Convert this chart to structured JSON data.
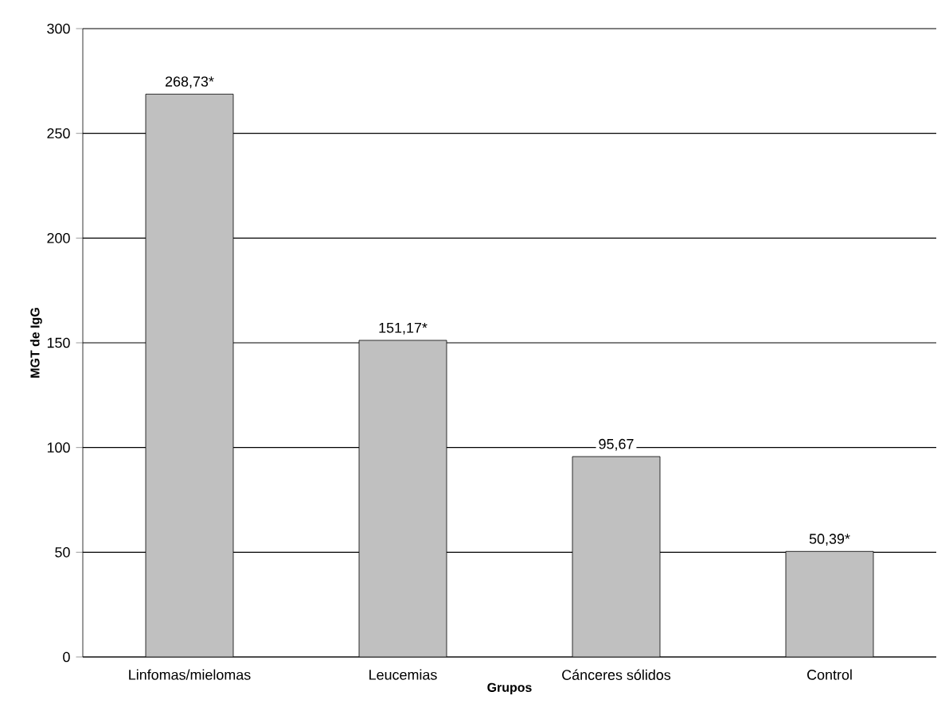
{
  "chart_data": {
    "type": "bar",
    "xlabel": "Grupos",
    "ylabel": "MGT de IgG",
    "categories": [
      "Linfomas/mielomas",
      "Leucemias",
      "Cánceres sólidos",
      "Control"
    ],
    "values": [
      268.73,
      151.17,
      95.67,
      50.39
    ],
    "value_labels": [
      "268,73*",
      "151,17*",
      "95,67",
      "50,39*"
    ],
    "color": "#c0c0c0",
    "ylim": [
      0,
      300
    ],
    "yticks": [
      0,
      50,
      100,
      150,
      200,
      250,
      300
    ],
    "grid": "y"
  }
}
